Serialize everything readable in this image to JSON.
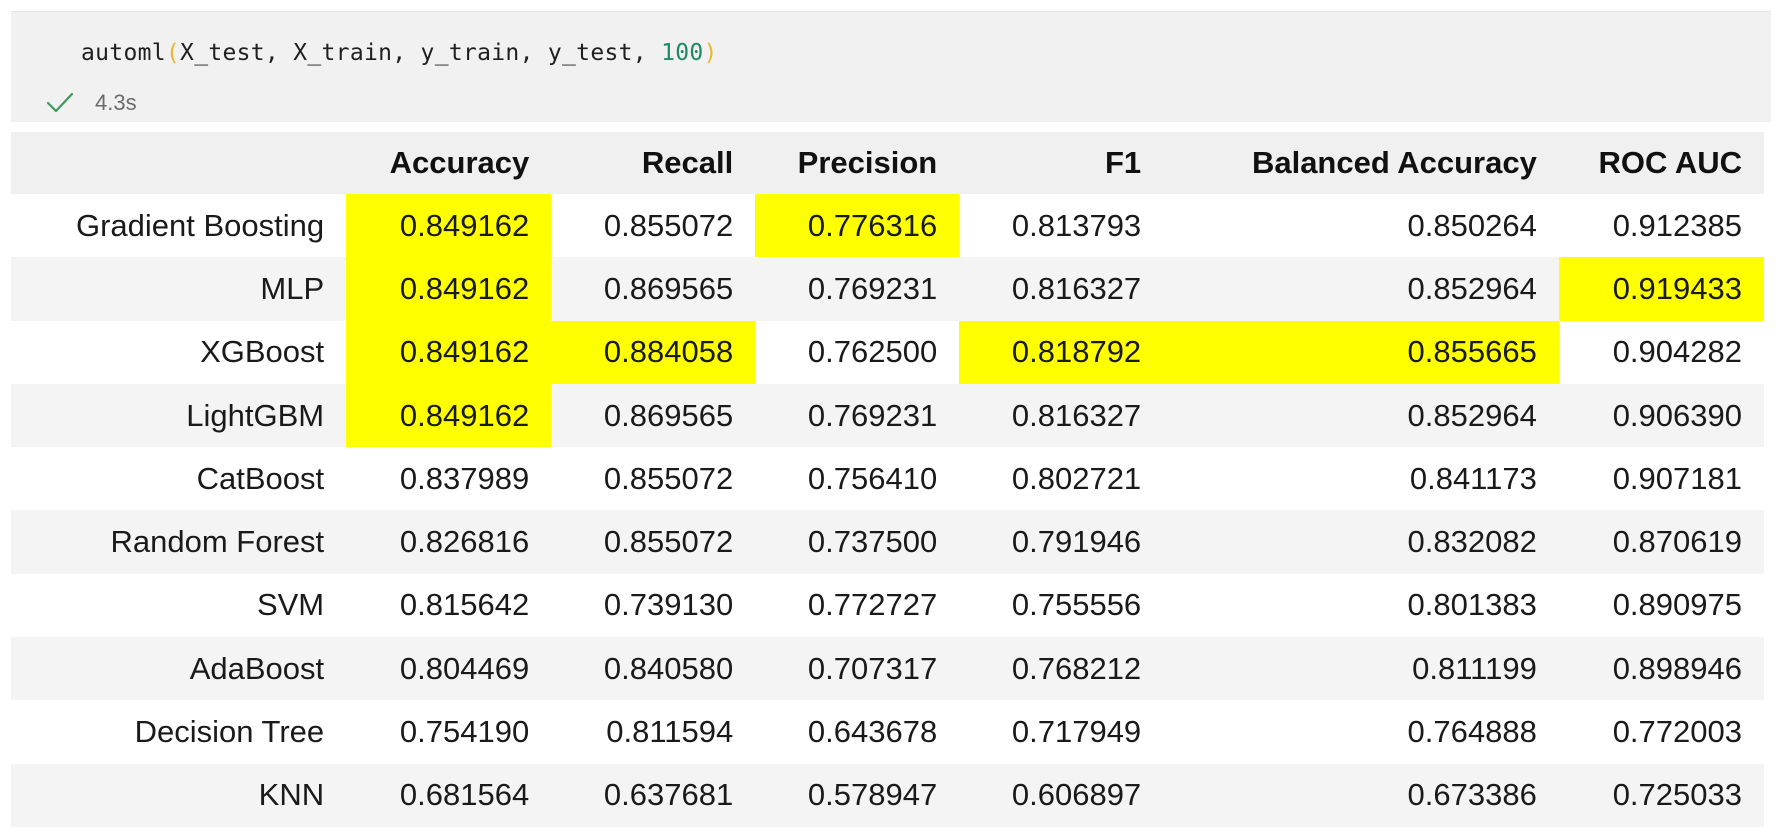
{
  "cell": {
    "code": {
      "fn": "automl",
      "open_paren": "(",
      "args": "X_test, X_train, y_train, y_test, ",
      "num": "100",
      "close_paren": ")"
    },
    "status": {
      "icon": "check-icon",
      "time": "4.3s",
      "check_color": "#3c9a5f"
    }
  },
  "table": {
    "highlight_color": "#ffff00",
    "corner": "",
    "columns": [
      "Accuracy",
      "Recall",
      "Precision",
      "F1",
      "Balanced Accuracy",
      "ROC AUC"
    ],
    "rows": [
      {
        "name": "Gradient Boosting",
        "values": [
          "0.849162",
          "0.855072",
          "0.776316",
          "0.813793",
          "0.850264",
          "0.912385"
        ],
        "highlight": [
          true,
          false,
          true,
          false,
          false,
          false
        ]
      },
      {
        "name": "MLP",
        "values": [
          "0.849162",
          "0.869565",
          "0.769231",
          "0.816327",
          "0.852964",
          "0.919433"
        ],
        "highlight": [
          true,
          false,
          false,
          false,
          false,
          true
        ]
      },
      {
        "name": "XGBoost",
        "values": [
          "0.849162",
          "0.884058",
          "0.762500",
          "0.818792",
          "0.855665",
          "0.904282"
        ],
        "highlight": [
          true,
          true,
          false,
          true,
          true,
          false
        ]
      },
      {
        "name": "LightGBM",
        "values": [
          "0.849162",
          "0.869565",
          "0.769231",
          "0.816327",
          "0.852964",
          "0.906390"
        ],
        "highlight": [
          true,
          false,
          false,
          false,
          false,
          false
        ]
      },
      {
        "name": "CatBoost",
        "values": [
          "0.837989",
          "0.855072",
          "0.756410",
          "0.802721",
          "0.841173",
          "0.907181"
        ],
        "highlight": [
          false,
          false,
          false,
          false,
          false,
          false
        ]
      },
      {
        "name": "Random Forest",
        "values": [
          "0.826816",
          "0.855072",
          "0.737500",
          "0.791946",
          "0.832082",
          "0.870619"
        ],
        "highlight": [
          false,
          false,
          false,
          false,
          false,
          false
        ]
      },
      {
        "name": "SVM",
        "values": [
          "0.815642",
          "0.739130",
          "0.772727",
          "0.755556",
          "0.801383",
          "0.890975"
        ],
        "highlight": [
          false,
          false,
          false,
          false,
          false,
          false
        ]
      },
      {
        "name": "AdaBoost",
        "values": [
          "0.804469",
          "0.840580",
          "0.707317",
          "0.768212",
          "0.811199",
          "0.898946"
        ],
        "highlight": [
          false,
          false,
          false,
          false,
          false,
          false
        ]
      },
      {
        "name": "Decision Tree",
        "values": [
          "0.754190",
          "0.811594",
          "0.643678",
          "0.717949",
          "0.764888",
          "0.772003"
        ],
        "highlight": [
          false,
          false,
          false,
          false,
          false,
          false
        ]
      },
      {
        "name": "KNN",
        "values": [
          "0.681564",
          "0.637681",
          "0.578947",
          "0.606897",
          "0.673386",
          "0.725033"
        ],
        "highlight": [
          false,
          false,
          false,
          false,
          false,
          false
        ]
      }
    ]
  }
}
